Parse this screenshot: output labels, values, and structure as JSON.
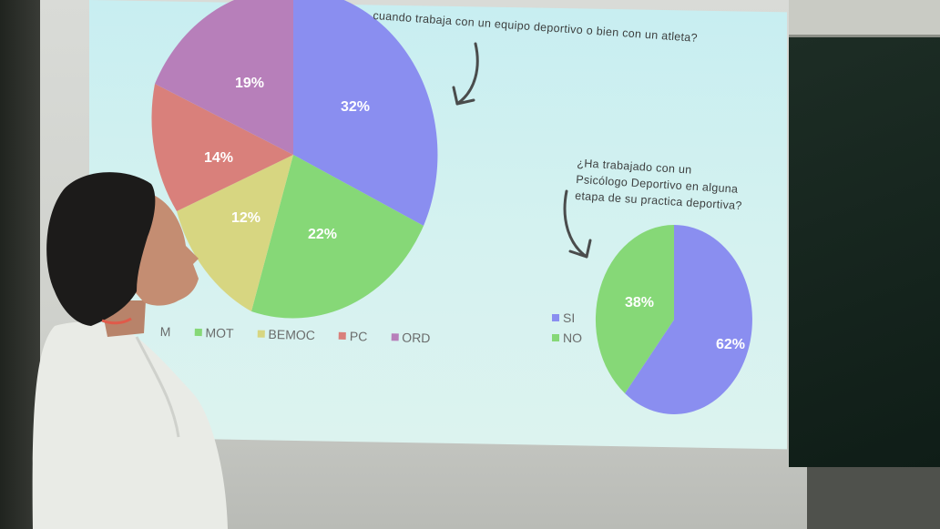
{
  "slide": {
    "question_top": "cuando trabaja con un equipo deportivo o bien con un atleta?",
    "question_small": [
      "¿Ha trabajado con un",
      "Psicólogo Deportivo en alguna",
      "etapa de su practica deportiva?"
    ]
  },
  "big_pie": {
    "labels": [
      "32%",
      "22%",
      "12%",
      "14%",
      "19%"
    ],
    "colors": [
      "#8a8ef0",
      "#86d877",
      "#d7d681",
      "#d9807b",
      "#b77fba"
    ]
  },
  "legend_bottom": [
    "M",
    "MOT",
    "BEMOC",
    "PC",
    "ORD"
  ],
  "small_pie": {
    "labels": [
      "62%",
      "38%"
    ],
    "colors": [
      "#8a8ef0",
      "#86d877"
    ]
  },
  "legend_small": [
    "SI",
    "NO"
  ]
}
